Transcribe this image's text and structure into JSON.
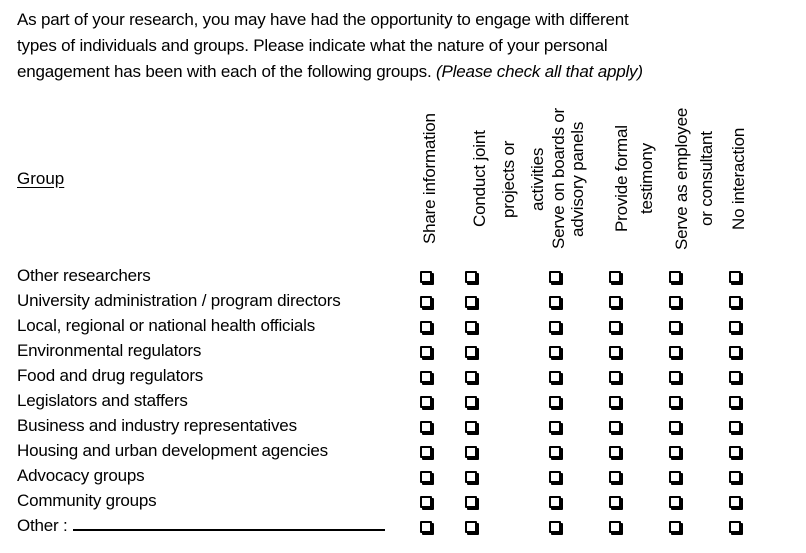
{
  "intro": {
    "text": "As part of your research, you may have had the opportunity to engage with different\ntypes of individuals and groups. Please indicate what the nature of your personal\nengagement has been with each of the following groups. ",
    "italic_note": "(Please check all that apply)"
  },
  "table": {
    "group_header": "Group",
    "columns": [
      "Share information",
      "Conduct joint\nprojects or\nactivities",
      "Serve on boards or\nadvisory panels",
      "Provide formal\ntestimony",
      "Serve as employee\nor consultant",
      "No interaction"
    ],
    "rows": [
      "Other researchers",
      "University administration / program directors",
      "Local, regional or national health officials",
      "Environmental regulators",
      "Food and drug regulators",
      "Legislators and staffers",
      "Business and industry representatives",
      "Housing and urban development agencies",
      "Advocacy groups",
      "Community groups",
      "Other :"
    ],
    "checkboxes_checked": false
  },
  "colors": {
    "text": "#000000",
    "background": "#ffffff"
  }
}
